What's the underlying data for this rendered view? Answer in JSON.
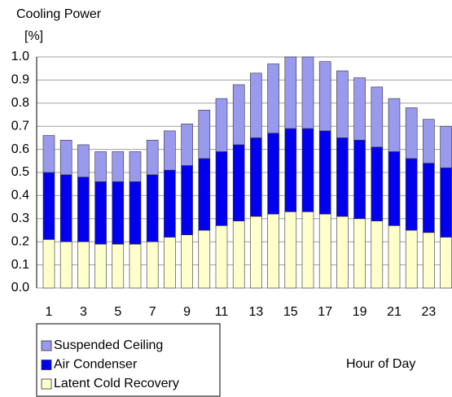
{
  "chart_data": {
    "type": "stacked_bar",
    "title": "Cooling Power",
    "y_axis_label": "[%]",
    "x_axis_label": "Hour of Day",
    "categories": [
      1,
      null,
      3,
      null,
      5,
      null,
      7,
      null,
      9,
      null,
      11,
      null,
      13,
      null,
      15,
      null,
      17,
      null,
      19,
      null,
      21,
      null,
      23,
      null
    ],
    "series": [
      {
        "name": "Suspended Ceiling",
        "color": "#9999ee",
        "values": [
          0.16,
          0.15,
          0.14,
          0.13,
          0.13,
          0.13,
          0.15,
          0.17,
          0.18,
          0.21,
          0.23,
          0.26,
          0.28,
          0.3,
          0.31,
          0.31,
          0.3,
          0.29,
          0.27,
          0.26,
          0.23,
          0.22,
          0.19,
          0.18
        ]
      },
      {
        "name": "Air Condenser",
        "color": "#0000ee",
        "values": [
          0.29,
          0.29,
          0.28,
          0.27,
          0.27,
          0.27,
          0.29,
          0.29,
          0.3,
          0.31,
          0.32,
          0.33,
          0.34,
          0.35,
          0.36,
          0.36,
          0.36,
          0.34,
          0.34,
          0.32,
          0.32,
          0.31,
          0.3,
          0.3
        ]
      },
      {
        "name": "Latent Cold Recovery",
        "color": "#ffffcc",
        "values": [
          0.21,
          0.2,
          0.2,
          0.19,
          0.19,
          0.19,
          0.2,
          0.22,
          0.23,
          0.25,
          0.27,
          0.29,
          0.31,
          0.32,
          0.33,
          0.33,
          0.32,
          0.31,
          0.3,
          0.29,
          0.27,
          0.25,
          0.24,
          0.22
        ]
      }
    ],
    "ylim": [
      0,
      1
    ],
    "yticks": [
      {
        "value": 0,
        "label": "0.0"
      },
      0.1,
      0.2,
      0.3,
      0.4,
      0.5,
      0.6,
      0.7,
      0.8,
      0.9,
      {
        "value": 1,
        "label": "1.0"
      }
    ],
    "grid": true
  }
}
